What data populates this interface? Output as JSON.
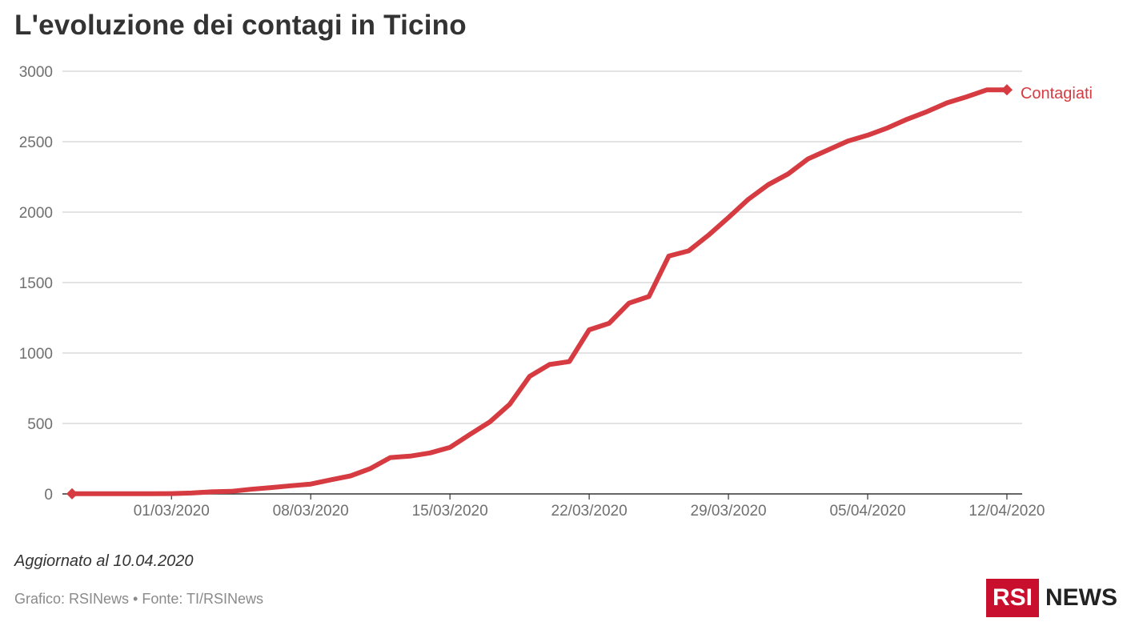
{
  "header": {
    "title": "L'evoluzione dei contagi in Ticino"
  },
  "footer": {
    "updated": "Aggiornato al 10.04.2020",
    "source": "Grafico: RSINews • Fonte: TI/RSINews",
    "logo_left": "RSI",
    "logo_right": "NEWS",
    "brand_color": "#c8102e"
  },
  "chart_data": {
    "type": "line",
    "title": "L'evoluzione dei contagi in Ticino",
    "xlabel": "",
    "ylabel": "",
    "ylim": [
      0,
      3000
    ],
    "yticks": [
      0,
      500,
      1000,
      1500,
      2000,
      2500,
      3000
    ],
    "xtick_labels": [
      "01/03/2020",
      "08/03/2020",
      "15/03/2020",
      "22/03/2020",
      "29/03/2020",
      "05/04/2020",
      "12/04/2020"
    ],
    "grid": "horizontal",
    "series": [
      {
        "name": "Contagiati",
        "color": "#d63b41",
        "x": [
          "25/02/2020",
          "26/02/2020",
          "27/02/2020",
          "28/02/2020",
          "29/02/2020",
          "01/03/2020",
          "02/03/2020",
          "03/03/2020",
          "04/03/2020",
          "05/03/2020",
          "06/03/2020",
          "07/03/2020",
          "08/03/2020",
          "09/03/2020",
          "10/03/2020",
          "11/03/2020",
          "12/03/2020",
          "13/03/2020",
          "14/03/2020",
          "15/03/2020",
          "16/03/2020",
          "17/03/2020",
          "18/03/2020",
          "19/03/2020",
          "20/03/2020",
          "21/03/2020",
          "22/03/2020",
          "23/03/2020",
          "24/03/2020",
          "25/03/2020",
          "26/03/2020",
          "27/03/2020",
          "28/03/2020",
          "29/03/2020",
          "30/03/2020",
          "31/03/2020",
          "01/04/2020",
          "02/04/2020",
          "03/04/2020",
          "04/04/2020",
          "05/04/2020",
          "06/04/2020",
          "07/04/2020",
          "08/04/2020",
          "09/04/2020",
          "10/04/2020",
          "11/04/2020",
          "12/04/2020"
        ],
        "values": [
          1,
          1,
          1,
          1,
          1,
          2,
          6,
          15,
          18,
          33,
          45,
          58,
          70,
          100,
          128,
          180,
          258,
          268,
          291,
          330,
          422,
          511,
          636,
          834,
          918,
          939,
          1165,
          1211,
          1354,
          1401,
          1688,
          1725,
          1837,
          1962,
          2091,
          2195,
          2271,
          2378,
          2441,
          2504,
          2546,
          2598,
          2660,
          2714,
          2776,
          2820,
          2868,
          2868
        ]
      }
    ]
  }
}
